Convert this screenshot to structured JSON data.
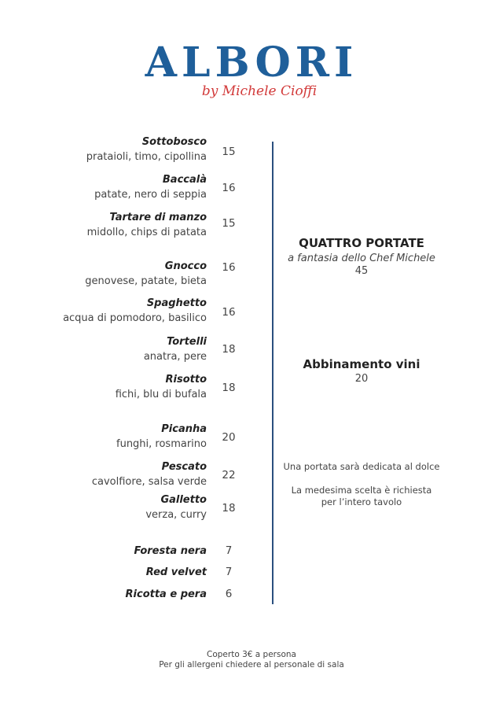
{
  "logo": {
    "brand": "ALBORI",
    "subtitle": "by Michele Cioffi",
    "brand_color": "#1f5f9a",
    "subtitle_color": "#d23a3a"
  },
  "menu": [
    {
      "name": "Sottobosco",
      "desc": "prataioli, timo, cipollina",
      "price": "15"
    },
    {
      "name": "Baccalà",
      "desc": "patate, nero di seppia",
      "price": "16"
    },
    {
      "name": "Tartare di manzo",
      "desc": "midollo, chips di patata",
      "price": "15"
    },
    {
      "name": "Gnocco",
      "desc": "genovese, patate, bieta",
      "price": "16"
    },
    {
      "name": "Spaghetto",
      "desc": "acqua di pomodoro, basilico",
      "price": "16"
    },
    {
      "name": "Tortelli",
      "desc": "anatra, pere",
      "price": "18"
    },
    {
      "name": "Risotto",
      "desc": "fichi, blu di bufala",
      "price": "18"
    },
    {
      "name": "Picanha",
      "desc": "funghi, rosmarino",
      "price": "20"
    },
    {
      "name": "Pescato",
      "desc": "cavolfiore, salsa verde",
      "price": "22"
    },
    {
      "name": "Galletto",
      "desc": "verza, curry",
      "price": "18"
    },
    {
      "name": "Foresta nera",
      "price": "7"
    },
    {
      "name": "Red velvet",
      "price": "7"
    },
    {
      "name": "Ricotta e pera",
      "price": "6"
    }
  ],
  "tasting": {
    "title": "QUATTRO PORTATE",
    "subtitle": "a fantasia dello Chef Michele",
    "price": "45"
  },
  "wine": {
    "title": "Abbinamento vini",
    "price": "20"
  },
  "notes": {
    "dessert": "Una portata sarà dedicata al dolce",
    "table": "La medesima scelta è richiesta per l’intero tavolo"
  },
  "footer": {
    "cover": "Coperto 3€ a persona",
    "allergens": "Per gli allergeni chiedere al personale di sala"
  }
}
